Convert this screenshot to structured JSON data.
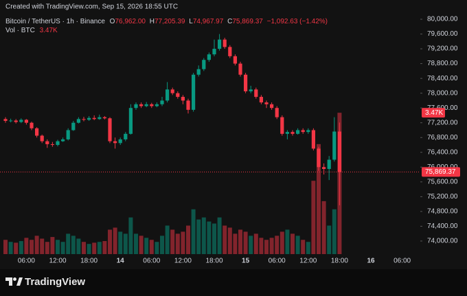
{
  "header": "Created with TradingView.com, Sep 15, 2026 18:55 UTC",
  "branding": "TradingView",
  "legend": {
    "symbol": "Bitcoin / TetherUS · 1h · Binance",
    "open_key": "O",
    "open": "76,962.00",
    "high_key": "H",
    "high": "77,205.39",
    "low_key": "L",
    "low": "74,967.97",
    "close_key": "C",
    "close": "75,869.37",
    "change": "−1,092.63 (−1.42%)",
    "volume_key": "Vol · BTC",
    "volume": "3.47K"
  },
  "chart_data": {
    "type": "candlestick",
    "categories": [
      null,
      null,
      null,
      null,
      "06:00",
      null,
      null,
      null,
      null,
      null,
      "12:00",
      null,
      null,
      null,
      null,
      null,
      "18:00",
      null,
      null,
      null,
      null,
      null,
      "14",
      null,
      null,
      null,
      null,
      null,
      "06:00",
      null,
      null,
      null,
      null,
      null,
      "12:00",
      null,
      null,
      null,
      null,
      null,
      "18:00",
      null,
      null,
      null,
      null,
      null,
      "15",
      null,
      null,
      null,
      null,
      null,
      "06:00",
      null,
      null,
      null,
      null,
      null,
      "12:00",
      null,
      null,
      null,
      null,
      null,
      "18:00",
      null,
      null,
      null,
      null,
      null,
      "16",
      null,
      null,
      null,
      null,
      null,
      "06:00"
    ],
    "open": [
      77300,
      77250,
      77260,
      77220,
      77280,
      77200,
      77050,
      76850,
      76700,
      76620,
      76600,
      76700,
      76750,
      77000,
      77200,
      77300,
      77280,
      77330,
      77300,
      77350,
      77320,
      76700,
      76650,
      76750,
      76900,
      77600,
      77700,
      77650,
      77700,
      77650,
      77700,
      77800,
      78100,
      78000,
      77900,
      77800,
      77550,
      78500,
      78650,
      78900,
      79050,
      79200,
      79450,
      79250,
      79000,
      78800,
      78500,
      78050,
      78100,
      77900,
      77750,
      77700,
      77600,
      77350,
      76900,
      76950,
      76900,
      77000,
      76950,
      77000,
      76500,
      76000,
      75950,
      76200,
      76962.0,
      null,
      null,
      null,
      null,
      null,
      null,
      null,
      null,
      null,
      null,
      null,
      null
    ],
    "high": [
      77350,
      77310,
      77300,
      77320,
      77300,
      77230,
      77080,
      76880,
      76750,
      76680,
      76740,
      76800,
      77050,
      77250,
      77350,
      77360,
      77380,
      77400,
      77420,
      77380,
      77350,
      76800,
      76800,
      76950,
      77700,
      77750,
      77750,
      77760,
      77740,
      77750,
      77900,
      78300,
      78150,
      78050,
      77950,
      77850,
      78550,
      78750,
      78950,
      79100,
      79450,
      79600,
      79500,
      79300,
      79050,
      78850,
      78550,
      78200,
      78150,
      77950,
      77800,
      77750,
      77650,
      77400,
      77000,
      77000,
      77050,
      77050,
      77050,
      77050,
      76550,
      76100,
      76300,
      77350,
      77205.39,
      null,
      null,
      null,
      null,
      null,
      null,
      null,
      null,
      null,
      null,
      null,
      null
    ],
    "low": [
      77200,
      77210,
      77180,
      77190,
      77150,
      77000,
      76800,
      76650,
      76520,
      76550,
      76560,
      76680,
      76720,
      76980,
      77180,
      77240,
      77250,
      77270,
      77280,
      77290,
      76650,
      76500,
      76600,
      76700,
      76880,
      77550,
      77600,
      77620,
      77600,
      77620,
      77650,
      77750,
      77950,
      77850,
      77700,
      77450,
      77500,
      78450,
      78600,
      78850,
      79000,
      79150,
      79200,
      78950,
      78750,
      78450,
      78000,
      78000,
      77850,
      77700,
      77600,
      77550,
      77300,
      76850,
      76750,
      76850,
      76880,
      76900,
      76900,
      76450,
      75900,
      75800,
      75650,
      76150,
      74967.97,
      null,
      null,
      null,
      null,
      null,
      null,
      null,
      null,
      null,
      null,
      null,
      null
    ],
    "close": [
      77250,
      77260,
      77220,
      77280,
      77200,
      77050,
      76850,
      76700,
      76620,
      76600,
      76700,
      76750,
      77000,
      77200,
      77300,
      77280,
      77330,
      77300,
      77350,
      77320,
      76700,
      76650,
      76750,
      76900,
      77600,
      77700,
      77650,
      77700,
      77650,
      77700,
      77800,
      78100,
      78000,
      77900,
      77800,
      77550,
      78500,
      78650,
      78900,
      79050,
      79200,
      79450,
      79250,
      79000,
      78800,
      78500,
      78050,
      78100,
      77900,
      77750,
      77700,
      77600,
      77350,
      76900,
      76950,
      76900,
      77000,
      76950,
      77000,
      76500,
      76000,
      75950,
      76200,
      76962,
      75869.37,
      null,
      null,
      null,
      null,
      null,
      null,
      null,
      null,
      null,
      null,
      null,
      null
    ],
    "volume": [
      350,
      300,
      280,
      320,
      400,
      350,
      450,
      380,
      300,
      420,
      350,
      300,
      500,
      450,
      380,
      300,
      250,
      280,
      300,
      320,
      600,
      650,
      550,
      500,
      900,
      500,
      450,
      400,
      350,
      300,
      450,
      700,
      600,
      500,
      550,
      700,
      1100,
      850,
      900,
      800,
      750,
      900,
      700,
      650,
      500,
      600,
      550,
      450,
      500,
      400,
      350,
      400,
      450,
      550,
      600,
      500,
      450,
      350,
      300,
      1800,
      2700,
      1300,
      700,
      1100,
      3470,
      null,
      null,
      null,
      null,
      null,
      null,
      null,
      null,
      null,
      null,
      null,
      null
    ],
    "last_price_label": "75,869.37",
    "last_volume_label": "3.47K",
    "up_color": "#089981",
    "down_color": "#f23645",
    "ylim": [
      73646,
      80149
    ],
    "volume_ylim": [
      0,
      5900
    ],
    "yticks": [
      {
        "value": 74000,
        "label": "74,000.00"
      },
      {
        "value": 74400,
        "label": "74,400.00"
      },
      {
        "value": 74800,
        "label": "74,800.00"
      },
      {
        "value": 75200,
        "label": "75,200.00"
      },
      {
        "value": 75600,
        "label": "75,600.00"
      },
      {
        "value": 76000,
        "label": "76,000.00"
      },
      {
        "value": 76400,
        "label": "76,400.00"
      },
      {
        "value": 76800,
        "label": "76,800.00"
      },
      {
        "value": 77200,
        "label": "77,200.00"
      },
      {
        "value": 77600,
        "label": "77,600.00"
      },
      {
        "value": 78000,
        "label": "78,000.00"
      },
      {
        "value": 78400,
        "label": "78,400.00"
      },
      {
        "value": 78800,
        "label": "78,800.00"
      },
      {
        "value": 79200,
        "label": "79,200.00"
      },
      {
        "value": 79600,
        "label": "79,600.00"
      },
      {
        "value": 80000,
        "label": "80,000.00"
      }
    ]
  }
}
